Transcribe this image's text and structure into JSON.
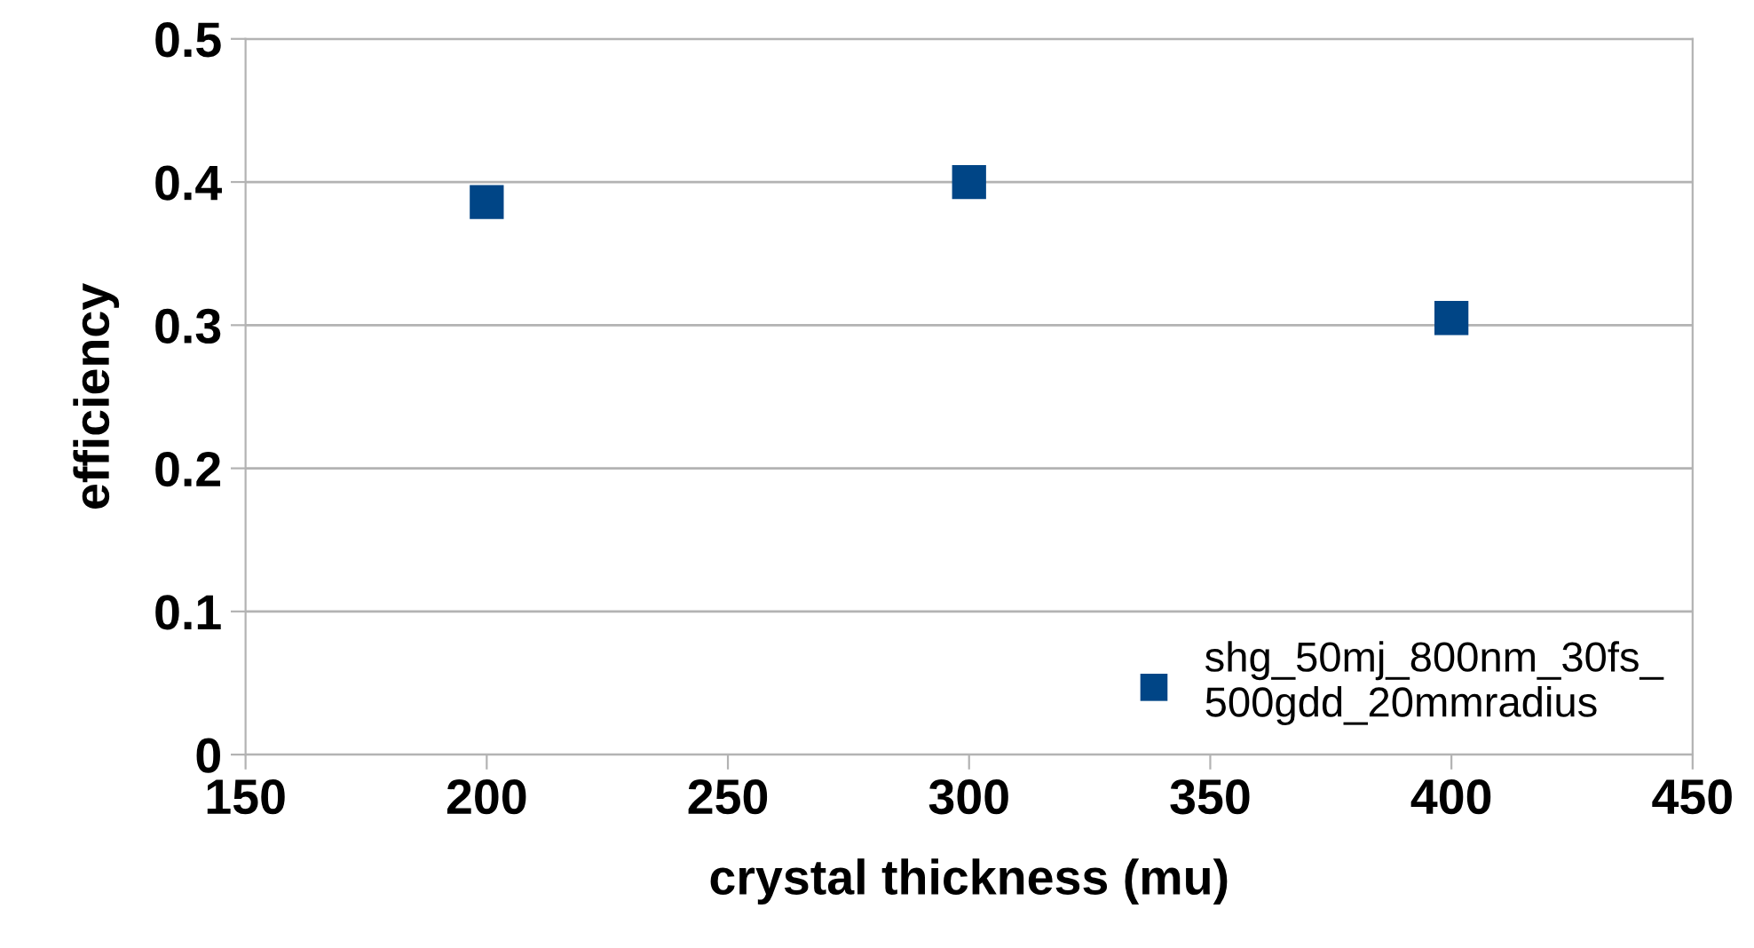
{
  "chart_data": {
    "type": "scatter",
    "xlabel": "crystal thickness (mu)",
    "ylabel": "efficiency",
    "x": [
      200,
      300,
      400
    ],
    "series": [
      {
        "name": "shg_50mj_800nm_30fs_\n500gdd_20mmradius",
        "color": "#004586",
        "values": [
          0.386,
          0.4,
          0.305
        ]
      }
    ],
    "xlim": [
      150,
      450
    ],
    "xticks": [
      150,
      200,
      250,
      300,
      350,
      400,
      450
    ],
    "ylim": [
      0,
      0.5
    ],
    "yticks": [
      0,
      0.1,
      0.2,
      0.3,
      0.4,
      0.5
    ],
    "grid": "y",
    "legend": "bottom right",
    "marker": "square"
  }
}
